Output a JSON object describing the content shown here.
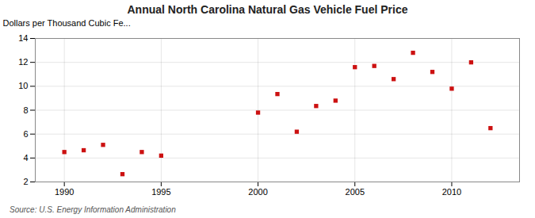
{
  "chart_data": {
    "type": "scatter",
    "title": "Annual North Carolina Natural Gas Vehicle Fuel Price",
    "ylabel": "Dollars per Thousand Cubic Fe...",
    "source": "Source: U.S. Energy Information Administration",
    "x": [
      1990,
      1991,
      1992,
      1993,
      1994,
      1995,
      2000,
      2001,
      2002,
      2003,
      2004,
      2005,
      2006,
      2007,
      2008,
      2009,
      2010,
      2011,
      2012
    ],
    "values": [
      4.5,
      4.65,
      5.1,
      2.65,
      4.5,
      4.2,
      7.8,
      9.35,
      6.2,
      8.35,
      8.8,
      11.6,
      11.7,
      10.6,
      12.8,
      11.2,
      9.8,
      12.0,
      6.5
    ],
    "color": "#cc1111",
    "marker": "square",
    "xlim": [
      1988.5,
      2013.5
    ],
    "ylim": [
      2,
      14
    ],
    "xticks": [
      1990,
      1995,
      2000,
      2005,
      2010
    ],
    "yticks": [
      2,
      4,
      6,
      8,
      10,
      12,
      14
    ],
    "grid": true
  }
}
